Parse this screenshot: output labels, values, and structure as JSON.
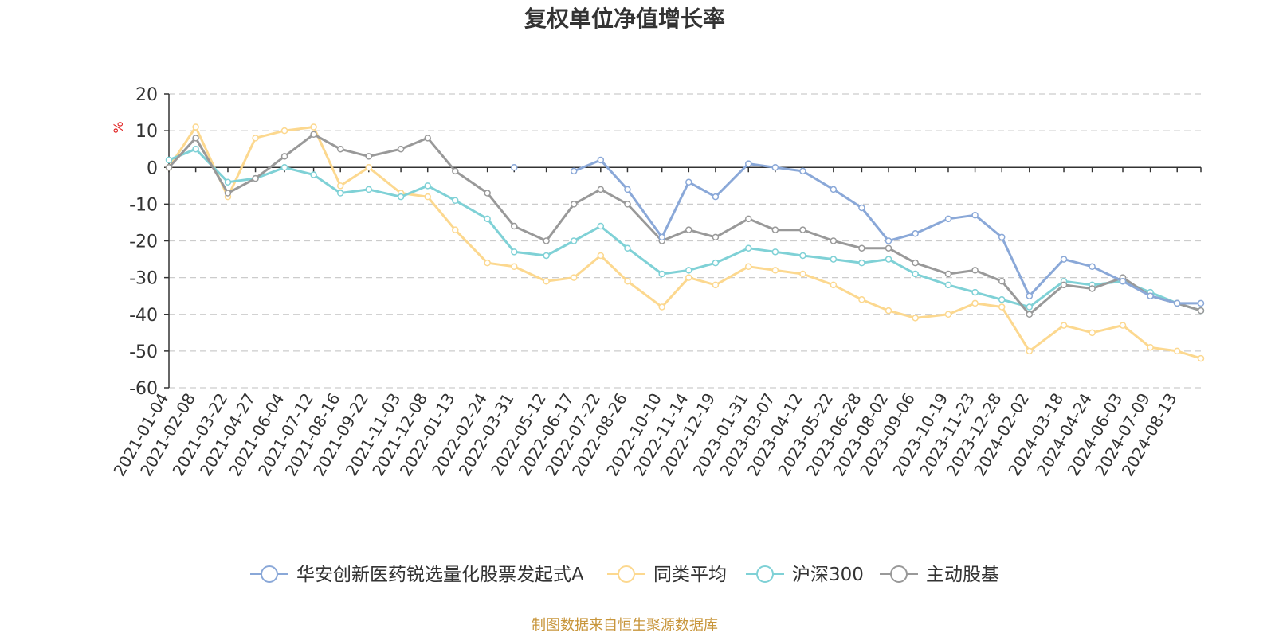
{
  "chart_data": {
    "type": "line",
    "title": "复权单位净值增长率",
    "ylabel": "%",
    "ylim": [
      -60,
      20
    ],
    "yticks": [
      "20",
      "10",
      "0",
      "-10",
      "-20",
      "-30",
      "-40",
      "-50",
      "-60"
    ],
    "ytick_values": [
      20,
      10,
      0,
      -10,
      -20,
      -30,
      -40,
      -50,
      -60
    ],
    "grid": true,
    "legend_position": "bottom",
    "x_labels": [
      "2021-01-04",
      "2021-02-08",
      "2021-03-22",
      "2021-04-27",
      "2021-06-04",
      "2021-07-12",
      "2021-08-16",
      "2021-09-22",
      "2021-11-03",
      "2021-12-08",
      "2022-01-13",
      "2022-02-24",
      "2022-03-31",
      "2022-05-12",
      "2022-06-17",
      "2022-07-22",
      "2022-08-26",
      "2022-10-10",
      "2022-11-14",
      "2022-12-19",
      "2023-01-31",
      "2023-03-07",
      "2023-04-12",
      "2023-05-22",
      "2023-06-28",
      "2023-08-02",
      "2023-09-06",
      "2023-10-19",
      "2023-11-23",
      "2023-12-28",
      "2024-02-02",
      "2024-03-18",
      "2024-04-24",
      "2024-06-03",
      "2024-07-09",
      "2024-08-13"
    ],
    "x": [
      "2021-01-04",
      "2021-02-08",
      "2021-03-22",
      "2021-04-27",
      "2021-06-04",
      "2021-07-12",
      "2021-08-16",
      "2021-09-22",
      "2021-11-03",
      "2021-12-08",
      "2022-01-13",
      "2022-02-24",
      "2022-03-31",
      "2022-05-12",
      "2022-06-17",
      "2022-07-22",
      "2022-08-26",
      "2022-10-10",
      "2022-11-14",
      "2022-12-19",
      "2023-01-31",
      "2023-03-07",
      "2023-04-12",
      "2023-05-22",
      "2023-06-28",
      "2023-08-02",
      "2023-09-06",
      "2023-10-19",
      "2023-11-23",
      "2023-12-28",
      "2024-02-02",
      "2024-03-18",
      "2024-04-24",
      "2024-06-03",
      "2024-07-09",
      "2024-08-13",
      "2024-09-13"
    ],
    "series": [
      {
        "name": "华安创新医药锐选量化股票发起式A",
        "color": "#8aa8d8",
        "values": [
          null,
          null,
          null,
          null,
          null,
          null,
          null,
          null,
          null,
          null,
          null,
          null,
          0,
          null,
          -1,
          2,
          -6,
          -19,
          -4,
          -8,
          1,
          0,
          -1,
          -6,
          -11,
          -20,
          -18,
          -14,
          -13,
          -19,
          -35,
          -25,
          -27,
          -31,
          -35,
          -37,
          -37
        ]
      },
      {
        "name": "同类平均",
        "color": "#fcd88f",
        "values": [
          0,
          11,
          -8,
          8,
          10,
          11,
          -5,
          0,
          -7,
          -8,
          -17,
          -26,
          -27,
          -31,
          -30,
          -24,
          -31,
          -38,
          -30,
          -32,
          -27,
          -28,
          -29,
          -32,
          -36,
          -39,
          -41,
          -40,
          -37,
          -38,
          -50,
          -43,
          -45,
          -43,
          -49,
          -50,
          -52
        ]
      },
      {
        "name": "沪深300",
        "color": "#7fd1d6",
        "values": [
          2,
          5,
          -4,
          -3,
          0,
          -2,
          -7,
          -6,
          -8,
          -5,
          -9,
          -14,
          -23,
          -24,
          -20,
          -16,
          -22,
          -29,
          -28,
          -26,
          -22,
          -23,
          -24,
          -25,
          -26,
          -25,
          -29,
          -32,
          -34,
          -36,
          -38,
          -31,
          -32,
          -31,
          -34,
          -37,
          -39
        ]
      },
      {
        "name": "主动股基",
        "color": "#999999",
        "values": [
          0,
          8,
          -7,
          -3,
          3,
          9,
          5,
          3,
          5,
          8,
          -1,
          -7,
          -16,
          -20,
          -10,
          -6,
          -10,
          -20,
          -17,
          -19,
          -14,
          -17,
          -17,
          -20,
          -22,
          -22,
          -26,
          -29,
          -28,
          -31,
          -40,
          -32,
          -33,
          -30,
          -35,
          -37,
          -39
        ]
      }
    ]
  },
  "source": "制图数据来自恒生聚源数据库"
}
